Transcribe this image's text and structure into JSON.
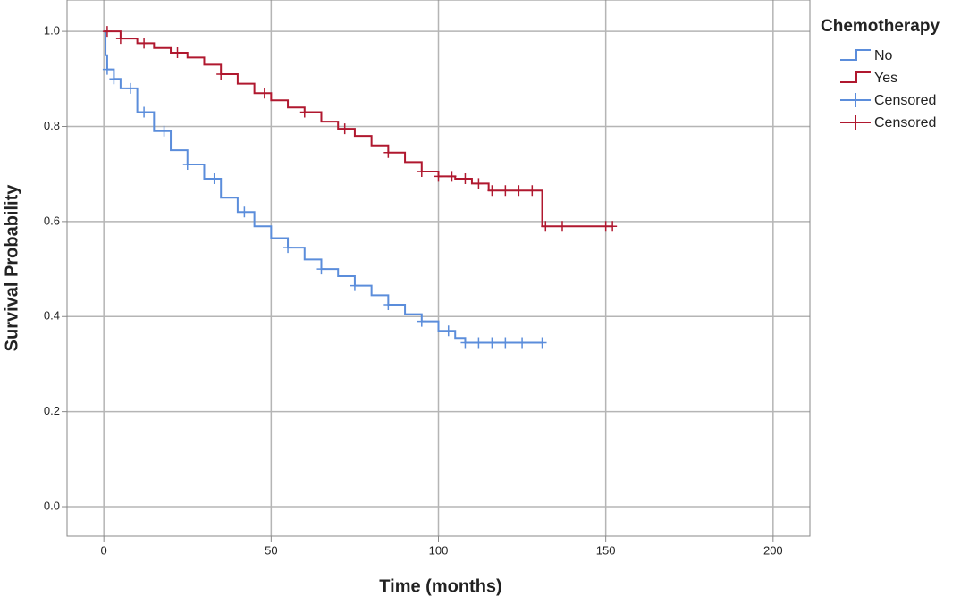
{
  "chart_data": {
    "type": "km",
    "x_label": "Time (months)",
    "y_label": "Survival Probability",
    "legend_title": "Chemotherapy",
    "legend": "right",
    "grid": true,
    "xlim": [
      -11,
      211
    ],
    "xticks": [
      0,
      50,
      100,
      150,
      200
    ],
    "ylim": [
      -0.062,
      1.066
    ],
    "yticks": [
      {
        "value": 0,
        "label": "0.0"
      },
      0.2,
      0.4,
      0.6,
      0.8,
      {
        "value": 1,
        "label": "1.0"
      }
    ],
    "series": [
      {
        "name": "No",
        "color": "#5b8ddb",
        "kind": "step",
        "x": [
          0,
          0.5,
          1,
          3,
          5,
          10,
          15,
          20,
          25,
          30,
          35,
          40,
          45,
          50,
          55,
          60,
          65,
          70,
          75,
          80,
          85,
          90,
          95,
          100,
          105,
          108,
          131
        ],
        "values": [
          1.0,
          0.95,
          0.92,
          0.9,
          0.88,
          0.83,
          0.79,
          0.75,
          0.72,
          0.69,
          0.65,
          0.62,
          0.59,
          0.565,
          0.545,
          0.52,
          0.5,
          0.485,
          0.465,
          0.445,
          0.425,
          0.405,
          0.39,
          0.37,
          0.355,
          0.345,
          0.345
        ]
      },
      {
        "name": "Yes",
        "color": "#b0182f",
        "kind": "step",
        "x": [
          0,
          5,
          10,
          15,
          20,
          25,
          30,
          35,
          40,
          45,
          50,
          55,
          60,
          65,
          70,
          75,
          80,
          85,
          90,
          95,
          100,
          105,
          110,
          115,
          131,
          152
        ],
        "values": [
          1.0,
          0.985,
          0.975,
          0.965,
          0.955,
          0.945,
          0.93,
          0.91,
          0.89,
          0.87,
          0.855,
          0.84,
          0.83,
          0.81,
          0.795,
          0.78,
          0.76,
          0.745,
          0.725,
          0.705,
          0.695,
          0.69,
          0.68,
          0.665,
          0.59,
          0.59
        ]
      },
      {
        "name": "Censored",
        "color": "#5b8ddb",
        "kind": "censor",
        "x": [
          1,
          3,
          8,
          12,
          18,
          25,
          33,
          42,
          55,
          65,
          75,
          85,
          95,
          103,
          108,
          112,
          116,
          120,
          125,
          131
        ],
        "values": [
          0.92,
          0.9,
          0.88,
          0.83,
          0.79,
          0.72,
          0.69,
          0.62,
          0.545,
          0.5,
          0.465,
          0.425,
          0.39,
          0.37,
          0.345,
          0.345,
          0.345,
          0.345,
          0.345,
          0.345
        ]
      },
      {
        "name": "Censored",
        "color": "#b0182f",
        "kind": "censor",
        "x": [
          1,
          5,
          12,
          22,
          35,
          48,
          60,
          72,
          85,
          95,
          100,
          104,
          108,
          112,
          116,
          120,
          124,
          128,
          132,
          137,
          150,
          152
        ],
        "values": [
          1.0,
          0.985,
          0.975,
          0.955,
          0.91,
          0.87,
          0.83,
          0.795,
          0.745,
          0.705,
          0.695,
          0.695,
          0.69,
          0.68,
          0.665,
          0.665,
          0.665,
          0.665,
          0.59,
          0.59,
          0.59,
          0.59
        ]
      }
    ]
  }
}
